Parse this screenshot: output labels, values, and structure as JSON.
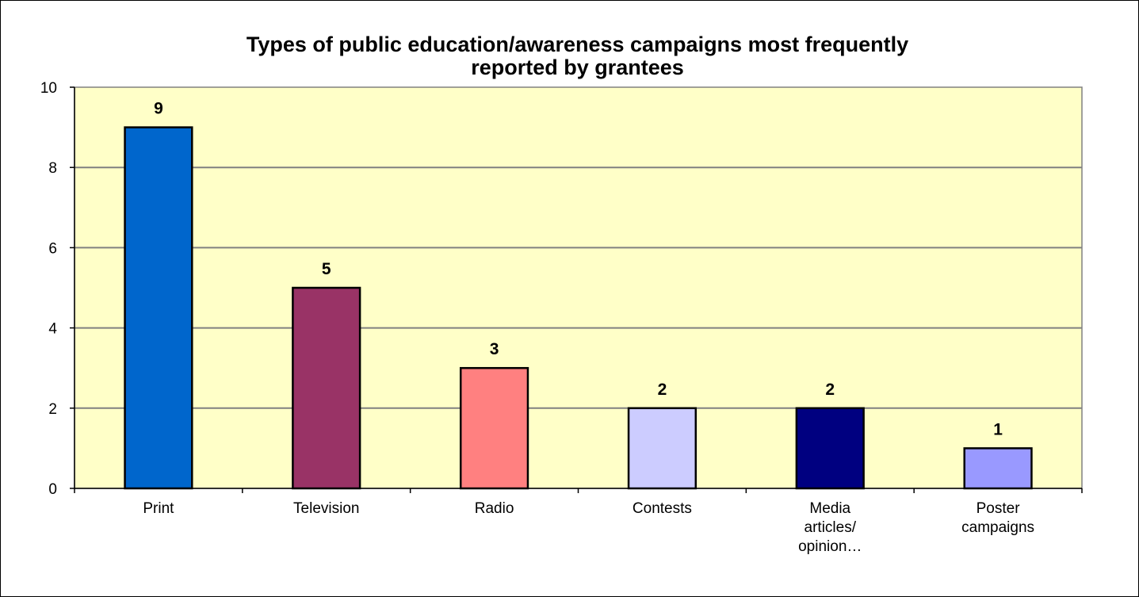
{
  "chart_data": {
    "type": "bar",
    "title_lines": [
      "Types of public education/awareness campaigns most frequently",
      "reported by grantees"
    ],
    "categories": [
      [
        "Print"
      ],
      [
        "Television"
      ],
      [
        "Radio"
      ],
      [
        "Contests"
      ],
      [
        "Media",
        "articles/",
        "opinion…"
      ],
      [
        "Poster",
        "campaigns"
      ]
    ],
    "values": [
      9,
      5,
      3,
      2,
      2,
      1
    ],
    "bar_colors": [
      "#0066cc",
      "#993366",
      "#ff8080",
      "#ccccff",
      "#000080",
      "#9999ff"
    ],
    "plot_background": "#ffffc8",
    "ylim": [
      0,
      10
    ],
    "yticks": [
      "0",
      "2",
      "4",
      "6",
      "8",
      "10"
    ],
    "grid": true,
    "xlabel": "",
    "ylabel": ""
  }
}
